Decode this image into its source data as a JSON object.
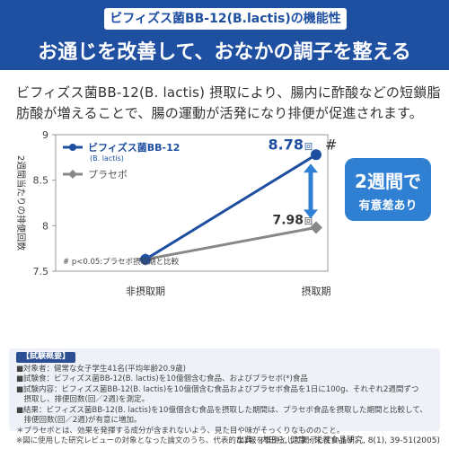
{
  "header": {
    "kicker": "ビフィズス菌BB-12(B.lactis)の機能性",
    "headline": "お通じを改善して、おなかの調子を整える"
  },
  "lead": {
    "line1": "ビフィズス菌BB-12(B. lactis) 摂取により、腸内に酢酸などの短鎖脂",
    "line2": "肪酸が増えることで、腸の運動が活発になり排便が促進されます。"
  },
  "chart_data": {
    "type": "line",
    "categories": [
      "非摂取期",
      "摂取期"
    ],
    "ylabel": "2週間当たりの排便回数",
    "ylim": [
      7.5,
      9
    ],
    "yticks": [
      "7.5",
      "8",
      "8.5",
      "9"
    ],
    "series": [
      {
        "name": "ビフィズス菌BB-12",
        "sub": "(B. lactis)",
        "values": [
          7.63,
          8.78
        ],
        "color": "#1f4fa0",
        "marker": "circle"
      },
      {
        "name": "プラセボ",
        "values": [
          7.63,
          7.98
        ],
        "color": "#888888",
        "marker": "diamond"
      }
    ],
    "data_labels": [
      {
        "value": "8.78",
        "unit": "回",
        "series": 0,
        "color": "#1f4fa0"
      },
      {
        "value": "7.98",
        "unit": "回",
        "series": 1,
        "color": "#333333"
      }
    ],
    "significance_mark": "#",
    "footnote": "# p<0.05:プラセボ摂取期と比較",
    "legend_position": "top-left",
    "callout": {
      "big": "2週間で",
      "small": "有意差あり"
    }
  },
  "notes": {
    "title": "【試験概要】",
    "lines": [
      "■対象者：健常な女子学生41名(平均年齢20.9歳)",
      "■試験食：ビフィズス菌BB-12(B. lactis)を10億個含む食品、およびプラセボ(*)食品",
      "■試験内容：ビフィズス菌BB-12(B. lactis)を10億個含む食品およびプラセボ食品を1日に100g、それぞれ2週間ずつ",
      "　摂取し、排便回数(回／2週)を測定。",
      "■結果：ビフィズス菌BB-12(B. lactis)を10億個含む食品を摂取した期間は、プラセボ食品を摂取した期間と比較して、",
      "　排便回数(回／2週)が有意に増加。",
      "＊プラセボとは、効果を発揮する成分が含まれないよう、見た目や味がそっくりなもののこと。",
      "※図に使用した研究レビューの対象となった論文のうち、代表的な1報を事例として掲示しています。"
    ]
  },
  "source": "出典：内田ら, 健康・栄養食品研究, 8(1), 39-51(2005)"
}
